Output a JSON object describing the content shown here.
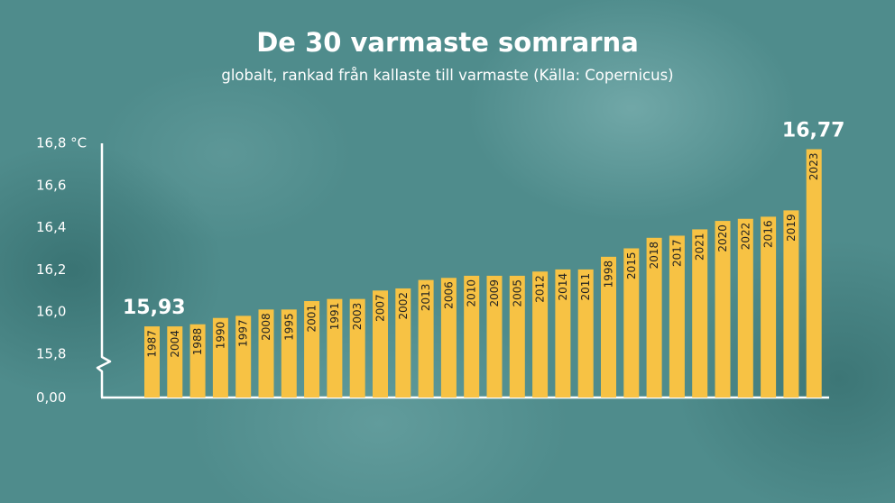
{
  "title": "De 30 varmaste somrarna",
  "subtitle": "globalt, rankad från kallaste till varmaste (Källa: Copernicus)",
  "colors": {
    "bar": "#f7c244",
    "axis": "#ffffff",
    "background": "#4f8c8c",
    "text": "#ffffff",
    "bar_label": "#222222"
  },
  "chart_data": {
    "type": "bar",
    "title": "De 30 varmaste somrarna",
    "subtitle": "globalt, rankad från kallaste till varmaste (Källa: Copernicus)",
    "unit": "°C",
    "categories": [
      "1987",
      "2004",
      "1988",
      "1990",
      "1997",
      "2008",
      "1995",
      "2001",
      "1991",
      "2003",
      "2007",
      "2002",
      "2013",
      "2006",
      "2010",
      "2009",
      "2005",
      "2012",
      "2014",
      "2011",
      "1998",
      "2015",
      "2018",
      "2017",
      "2021",
      "2020",
      "2022",
      "2016",
      "2019",
      "2023"
    ],
    "values": [
      15.93,
      15.93,
      15.94,
      15.97,
      15.98,
      16.01,
      16.01,
      16.05,
      16.06,
      16.06,
      16.1,
      16.11,
      16.15,
      16.16,
      16.17,
      16.17,
      16.17,
      16.19,
      16.2,
      16.2,
      16.26,
      16.3,
      16.35,
      16.36,
      16.39,
      16.43,
      16.44,
      16.45,
      16.48,
      16.77
    ],
    "y_ticks": [
      "16,8 °C",
      "16,6",
      "16,4",
      "16,2",
      "16,0",
      "15,8",
      "0,00"
    ],
    "ylim": [
      15.8,
      16.8
    ],
    "axis_break": true,
    "grid": false,
    "annotations": [
      {
        "text": "15,93",
        "category": "1987"
      },
      {
        "text": "16,77",
        "category": "2023"
      }
    ]
  }
}
